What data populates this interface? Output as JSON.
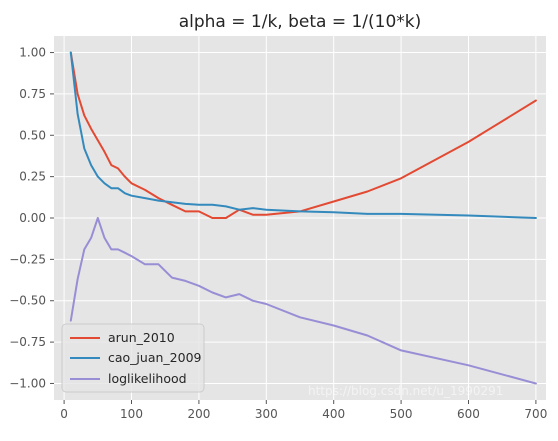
{
  "chart_data": {
    "type": "line",
    "title": "alpha = 1/k, beta = 1/(10*k)",
    "xlabel": "",
    "ylabel": "",
    "xlim": [
      -15,
      715
    ],
    "ylim": [
      -1.1,
      1.1
    ],
    "x_ticks": [
      0,
      100,
      200,
      300,
      400,
      500,
      600,
      700
    ],
    "x_tick_labels": [
      "0",
      "100",
      "200",
      "300",
      "400",
      "500",
      "600",
      "700"
    ],
    "y_ticks": [
      1.0,
      0.75,
      0.5,
      0.25,
      0.0,
      -0.25,
      -0.5,
      -0.75,
      -1.0
    ],
    "y_tick_labels": [
      "1.00",
      "0.75",
      "0.50",
      "0.25",
      "0.00",
      "−0.25",
      "−0.50",
      "−0.75",
      "−1.00"
    ],
    "grid": true,
    "legend_position": "lower-left",
    "series": [
      {
        "name": "arun_2010",
        "color": "#e24a33",
        "x": [
          10,
          20,
          30,
          40,
          50,
          60,
          70,
          80,
          90,
          100,
          120,
          140,
          160,
          180,
          200,
          220,
          240,
          260,
          280,
          300,
          350,
          400,
          450,
          500,
          600,
          700
        ],
        "y": [
          1.0,
          0.75,
          0.62,
          0.54,
          0.47,
          0.4,
          0.32,
          0.3,
          0.25,
          0.21,
          0.17,
          0.12,
          0.08,
          0.04,
          0.04,
          0.0,
          0.0,
          0.05,
          0.02,
          0.02,
          0.04,
          0.1,
          0.16,
          0.24,
          0.46,
          0.71
        ]
      },
      {
        "name": "cao_juan_2009",
        "color": "#348abd",
        "x": [
          10,
          20,
          30,
          40,
          50,
          60,
          70,
          80,
          90,
          100,
          120,
          140,
          160,
          180,
          200,
          220,
          240,
          260,
          280,
          300,
          350,
          400,
          450,
          500,
          600,
          700
        ],
        "y": [
          1.0,
          0.63,
          0.42,
          0.32,
          0.25,
          0.21,
          0.18,
          0.18,
          0.15,
          0.135,
          0.12,
          0.105,
          0.095,
          0.085,
          0.08,
          0.08,
          0.07,
          0.05,
          0.06,
          0.05,
          0.04,
          0.035,
          0.025,
          0.025,
          0.015,
          0.0
        ]
      },
      {
        "name": "loglikelihood",
        "color": "#988ed5",
        "x": [
          10,
          20,
          30,
          40,
          50,
          60,
          70,
          80,
          90,
          100,
          120,
          140,
          160,
          180,
          200,
          220,
          240,
          260,
          280,
          300,
          350,
          400,
          450,
          500,
          600,
          700
        ],
        "y": [
          -0.62,
          -0.37,
          -0.19,
          -0.12,
          0.0,
          -0.12,
          -0.19,
          -0.19,
          -0.21,
          -0.23,
          -0.28,
          -0.28,
          -0.36,
          -0.38,
          -0.41,
          -0.45,
          -0.48,
          -0.46,
          -0.5,
          -0.52,
          -0.6,
          -0.65,
          -0.71,
          -0.8,
          -0.89,
          -1.0
        ]
      }
    ]
  },
  "watermark": {
    "text": "https://blog.csdn.net/u_1990291"
  }
}
